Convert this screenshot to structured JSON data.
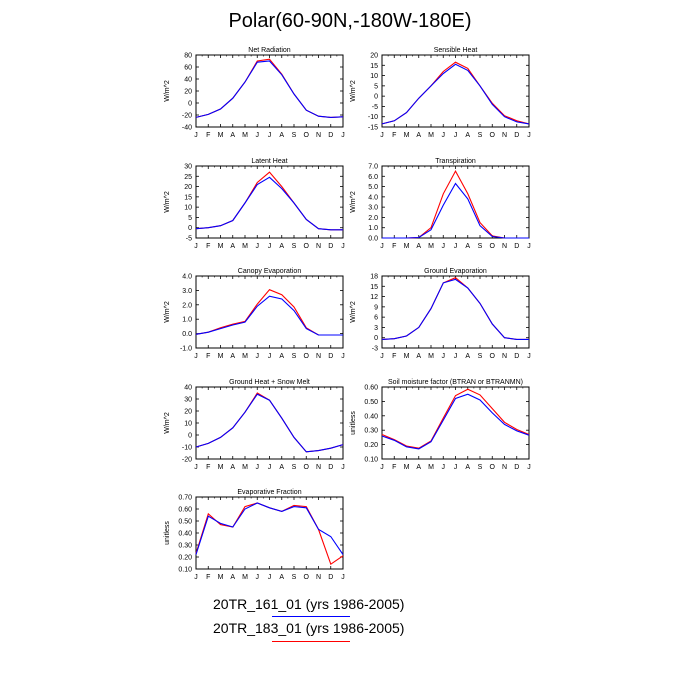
{
  "title": "Polar(60-90N,-180W-180E)",
  "legend": [
    {
      "label": "20TR_161_01 (yrs 1986-2005)",
      "color": "#0000ff"
    },
    {
      "label": "20TR_183_01 (yrs 1986-2005)",
      "color": "#ff0000"
    }
  ],
  "chart_data": [
    {
      "type": "line",
      "title": "Net Radiation",
      "ylabel": "W/m^2",
      "categories": [
        "J",
        "F",
        "M",
        "A",
        "M",
        "J",
        "J",
        "A",
        "S",
        "O",
        "N",
        "D",
        "J"
      ],
      "yticks": [
        "80",
        "60",
        "40",
        "20",
        "0",
        "-20",
        "-40"
      ],
      "ylim": [
        -40,
        80
      ],
      "series": [
        {
          "color": "#0000ff",
          "values": [
            -24,
            -19,
            -10,
            8,
            35,
            68,
            70,
            47,
            15,
            -12,
            -22,
            -24,
            -23
          ]
        },
        {
          "color": "#ff0000",
          "values": [
            -24,
            -19,
            -10,
            8,
            35,
            70,
            73,
            48,
            15,
            -12,
            -22,
            -24,
            -23
          ]
        }
      ]
    },
    {
      "type": "line",
      "title": "Sensible Heat",
      "ylabel": "W/m^2",
      "categories": [
        "J",
        "F",
        "M",
        "A",
        "M",
        "J",
        "J",
        "A",
        "S",
        "O",
        "N",
        "D",
        "J"
      ],
      "yticks": [
        "20",
        "15",
        "10",
        "5",
        "0",
        "-5",
        "-10",
        "-15"
      ],
      "ylim": [
        -15,
        20
      ],
      "series": [
        {
          "color": "#0000ff",
          "values": [
            -13.5,
            -12,
            -8,
            -1,
            5,
            11,
            15.5,
            12.5,
            5,
            -4,
            -10,
            -12.5,
            -13.5
          ]
        },
        {
          "color": "#ff0000",
          "values": [
            -13.5,
            -12,
            -8,
            -1,
            5,
            12,
            16.5,
            13.5,
            5,
            -3.5,
            -9.5,
            -12,
            -13.5
          ]
        }
      ]
    },
    {
      "type": "line",
      "title": "Latent Heat",
      "ylabel": "W/m^2",
      "categories": [
        "J",
        "F",
        "M",
        "A",
        "M",
        "J",
        "J",
        "A",
        "S",
        "O",
        "N",
        "D",
        "J"
      ],
      "yticks": [
        "30",
        "25",
        "20",
        "15",
        "10",
        "5",
        "0",
        "-5"
      ],
      "ylim": [
        -5,
        30
      ],
      "series": [
        {
          "color": "#0000ff",
          "values": [
            -0.5,
            0,
            1,
            3.5,
            12,
            21,
            24.5,
            19,
            12,
            4,
            -0.5,
            -1,
            -1
          ]
        },
        {
          "color": "#ff0000",
          "values": [
            -0.5,
            0,
            1,
            3.5,
            12,
            22,
            27,
            20,
            12,
            4,
            -0.5,
            -1,
            -1
          ]
        }
      ]
    },
    {
      "type": "line",
      "title": "Transpiration",
      "ylabel": "W/m^2",
      "categories": [
        "J",
        "F",
        "M",
        "A",
        "M",
        "J",
        "J",
        "A",
        "S",
        "O",
        "N",
        "D",
        "J"
      ],
      "yticks": [
        "7.0",
        "6.0",
        "5.0",
        "4.0",
        "3.0",
        "2.0",
        "1.0",
        "0.0"
      ],
      "ylim": [
        0,
        7
      ],
      "series": [
        {
          "color": "#0000ff",
          "values": [
            0,
            0,
            0,
            0.05,
            0.8,
            3.2,
            5.3,
            3.8,
            1.2,
            0.15,
            0,
            0,
            0
          ]
        },
        {
          "color": "#ff0000",
          "values": [
            0,
            0,
            0,
            0.05,
            1.0,
            4.3,
            6.5,
            4.3,
            1.5,
            0.2,
            0,
            0,
            0
          ]
        }
      ]
    },
    {
      "type": "line",
      "title": "Canopy Evaporation",
      "ylabel": "W/m^2",
      "categories": [
        "J",
        "F",
        "M",
        "A",
        "M",
        "J",
        "J",
        "A",
        "S",
        "O",
        "N",
        "D",
        "J"
      ],
      "yticks": [
        "4.0",
        "3.0",
        "2.0",
        "1.0",
        "0.0",
        "-1.0"
      ],
      "ylim": [
        -1,
        4
      ],
      "series": [
        {
          "color": "#0000ff",
          "values": [
            -0.05,
            0.1,
            0.35,
            0.6,
            0.8,
            1.9,
            2.6,
            2.4,
            1.6,
            0.35,
            -0.1,
            -0.1,
            -0.1
          ]
        },
        {
          "color": "#ff0000",
          "values": [
            -0.05,
            0.1,
            0.4,
            0.65,
            0.85,
            2.05,
            3.05,
            2.7,
            1.85,
            0.4,
            -0.1,
            -0.1,
            -0.1
          ]
        }
      ]
    },
    {
      "type": "line",
      "title": "Ground Evaporation",
      "ylabel": "W/m^2",
      "categories": [
        "J",
        "F",
        "M",
        "A",
        "M",
        "J",
        "J",
        "A",
        "S",
        "O",
        "N",
        "D",
        "J"
      ],
      "yticks": [
        "18",
        "15",
        "12",
        "9",
        "6",
        "3",
        "0",
        "-3"
      ],
      "ylim": [
        -3,
        18
      ],
      "series": [
        {
          "color": "#0000ff",
          "values": [
            -0.5,
            -0.3,
            0.5,
            3,
            8.5,
            16,
            17,
            14.5,
            10,
            4,
            0,
            -0.5,
            -0.5
          ]
        },
        {
          "color": "#ff0000",
          "values": [
            -0.5,
            -0.3,
            0.5,
            3,
            8.5,
            16,
            17.5,
            14.5,
            10,
            4,
            0,
            -0.5,
            -0.5
          ]
        }
      ]
    },
    {
      "type": "line",
      "title": "Ground Heat + Snow Melt",
      "ylabel": "W/m^2",
      "categories": [
        "J",
        "F",
        "M",
        "A",
        "M",
        "J",
        "J",
        "A",
        "S",
        "O",
        "N",
        "D",
        "J"
      ],
      "yticks": [
        "40",
        "30",
        "20",
        "10",
        "0",
        "-10",
        "-20"
      ],
      "ylim": [
        -20,
        40
      ],
      "series": [
        {
          "color": "#0000ff",
          "values": [
            -10,
            -7,
            -2,
            6,
            19,
            34,
            29,
            14,
            -2,
            -14,
            -13,
            -11,
            -8
          ]
        },
        {
          "color": "#ff0000",
          "values": [
            -10,
            -7,
            -2,
            6,
            19,
            35,
            29,
            14,
            -2,
            -14,
            -13,
            -11,
            -8
          ]
        }
      ]
    },
    {
      "type": "line",
      "title": "Soil moisture factor (BTRAN or BTRANMN)",
      "ylabel": "unitless",
      "categories": [
        "J",
        "F",
        "M",
        "A",
        "M",
        "J",
        "J",
        "A",
        "S",
        "O",
        "N",
        "D",
        "J"
      ],
      "yticks": [
        "0.60",
        "0.50",
        "0.40",
        "0.30",
        "0.20",
        "0.10"
      ],
      "ylim": [
        0.1,
        0.6
      ],
      "series": [
        {
          "color": "#0000ff",
          "values": [
            0.26,
            0.23,
            0.185,
            0.17,
            0.22,
            0.37,
            0.52,
            0.55,
            0.51,
            0.42,
            0.34,
            0.295,
            0.265
          ]
        },
        {
          "color": "#ff0000",
          "values": [
            0.27,
            0.235,
            0.19,
            0.175,
            0.225,
            0.385,
            0.54,
            0.585,
            0.545,
            0.45,
            0.355,
            0.305,
            0.27
          ]
        }
      ]
    },
    {
      "type": "line",
      "title": "Evaporative Fraction",
      "ylabel": "unitless",
      "categories": [
        "J",
        "F",
        "M",
        "A",
        "M",
        "J",
        "J",
        "A",
        "S",
        "O",
        "N",
        "D",
        "J"
      ],
      "yticks": [
        "0.70",
        "0.60",
        "0.50",
        "0.40",
        "0.30",
        "0.20",
        "0.10"
      ],
      "ylim": [
        0.1,
        0.7
      ],
      "series": [
        {
          "color": "#0000ff",
          "values": [
            0.22,
            0.54,
            0.48,
            0.45,
            0.6,
            0.65,
            0.61,
            0.58,
            0.62,
            0.61,
            0.43,
            0.37,
            0.22
          ]
        },
        {
          "color": "#ff0000",
          "values": [
            0.23,
            0.56,
            0.47,
            0.45,
            0.62,
            0.65,
            0.61,
            0.58,
            0.63,
            0.62,
            0.43,
            0.14,
            0.21
          ]
        }
      ]
    }
  ]
}
